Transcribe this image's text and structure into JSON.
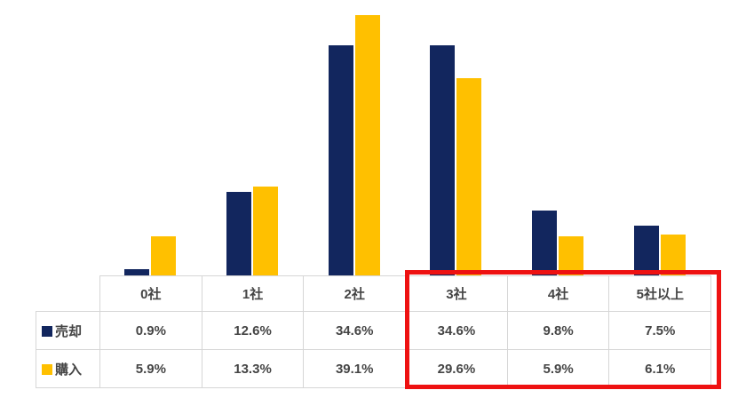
{
  "chart_data": {
    "type": "bar",
    "categories": [
      "0社",
      "1社",
      "2社",
      "3社",
      "4社",
      "5社以上"
    ],
    "series": [
      {
        "name": "売却",
        "color": "#12265E",
        "values": [
          0.9,
          12.6,
          34.6,
          34.6,
          9.8,
          7.5
        ]
      },
      {
        "name": "購入",
        "color": "#FFC000",
        "values": [
          5.9,
          13.3,
          39.1,
          29.6,
          5.9,
          6.1
        ]
      }
    ],
    "value_suffix": "%",
    "title": "",
    "xlabel": "",
    "ylabel": "",
    "ylim": [
      0,
      40
    ],
    "grid": false,
    "legend_position": "table-row-headers",
    "annotation": "red box highlighting 3社, 4社 and 5社以上 columns"
  },
  "table": {
    "columns": [
      "0社",
      "1社",
      "2社",
      "3社",
      "4社",
      "5社以上"
    ],
    "rows": [
      {
        "label": "売却",
        "values": [
          "0.9%",
          "12.6%",
          "34.6%",
          "34.6%",
          "9.8%",
          "7.5%"
        ]
      },
      {
        "label": "購入",
        "values": [
          "5.9%",
          "13.3%",
          "39.1%",
          "29.6%",
          "5.9%",
          "6.1%"
        ]
      }
    ]
  },
  "highlight": {
    "highlighted_columns": [
      "3社",
      "4社",
      "5社以上"
    ]
  },
  "colors": {
    "sell": "#12265E",
    "buy": "#FFC000",
    "table_border": "#D6D6D6",
    "table_text": "#454545",
    "highlight": "#EE1111"
  }
}
